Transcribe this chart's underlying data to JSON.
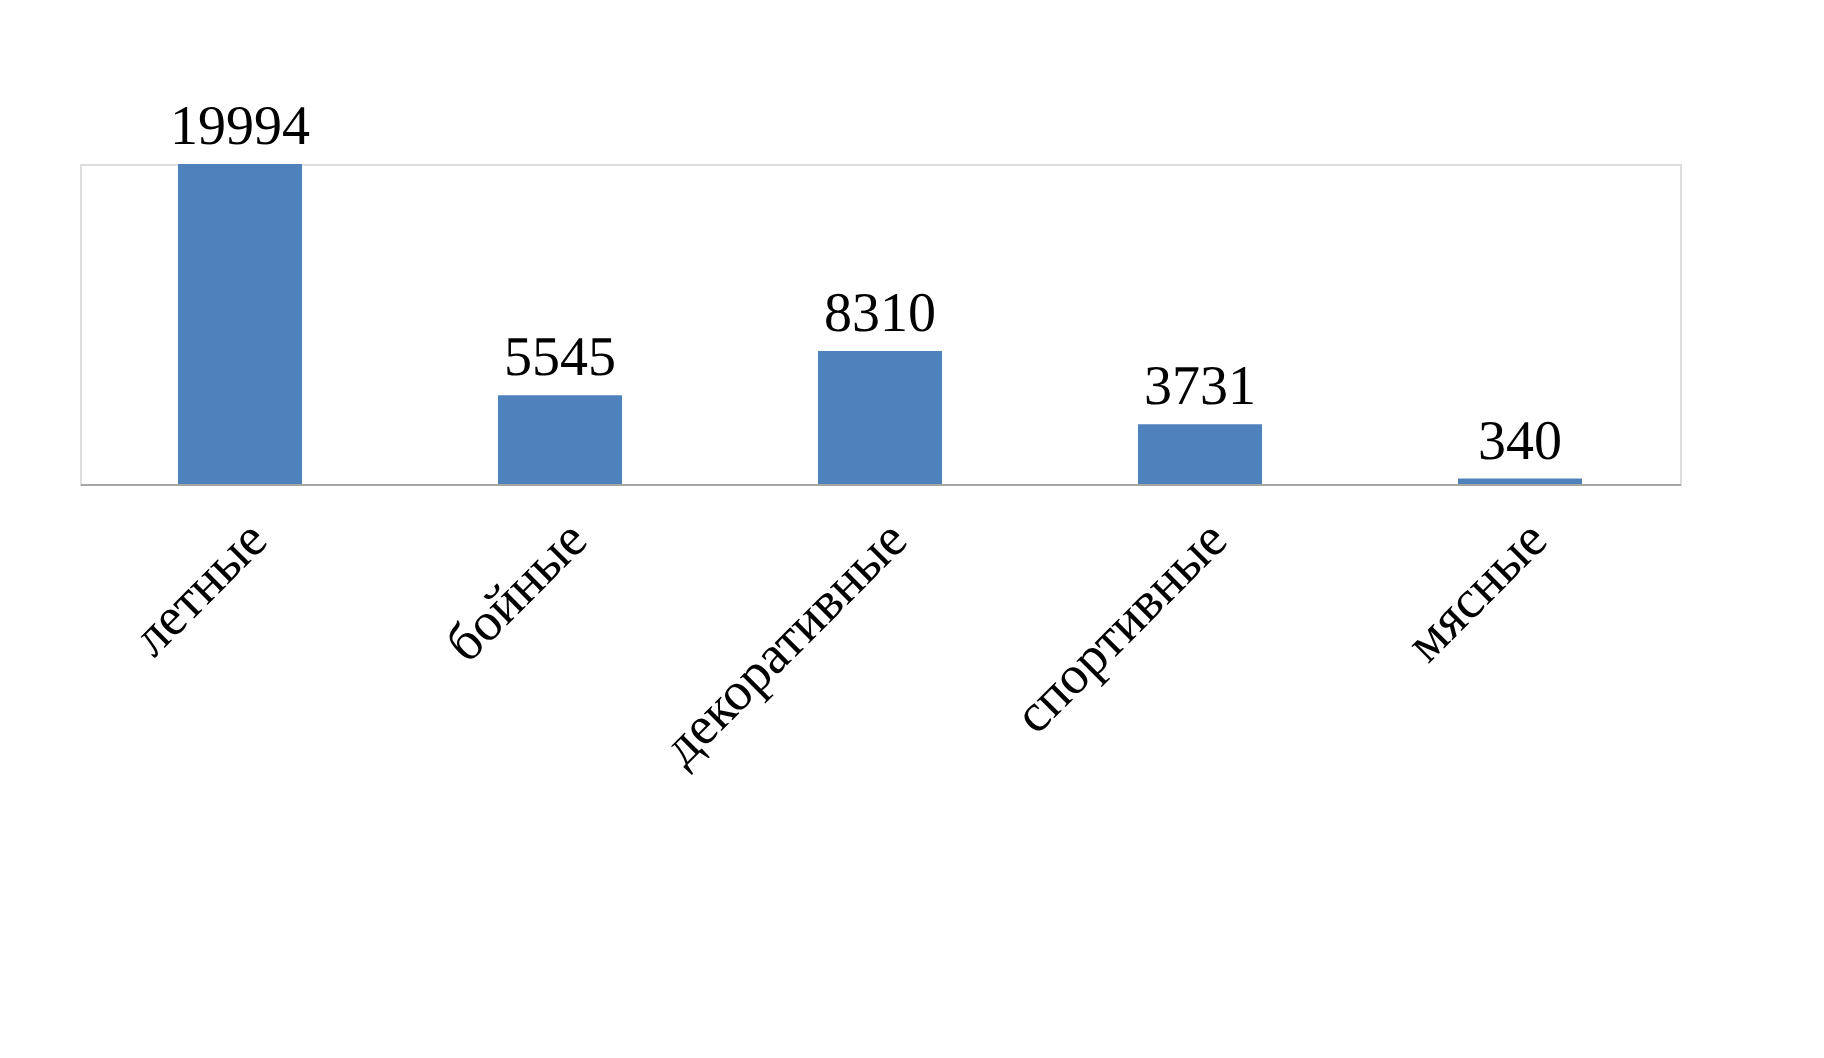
{
  "chart_data": {
    "type": "bar",
    "categories": [
      "летные",
      "бойные",
      "декоративные",
      "спортивные",
      "мясные"
    ],
    "values": [
      19994,
      5545,
      8310,
      3731,
      340
    ],
    "color": "#4f81bd",
    "data_labels": true,
    "grid": false
  }
}
